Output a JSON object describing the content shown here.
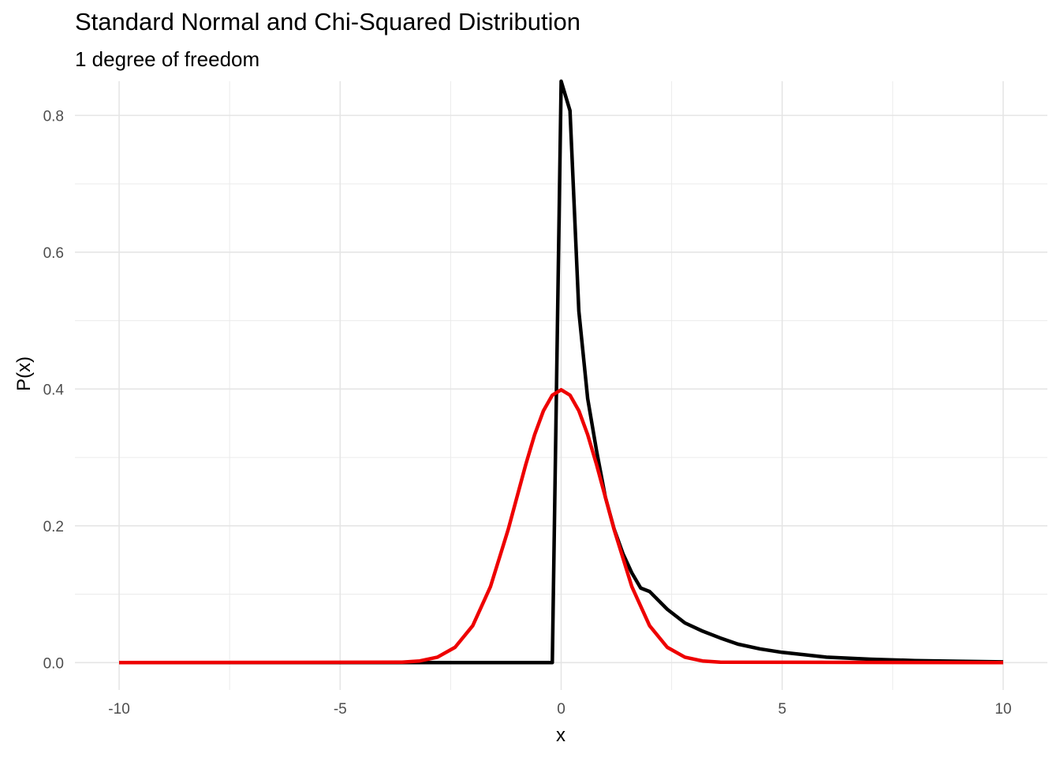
{
  "chart_data": {
    "type": "line",
    "title": "Standard Normal and Chi-Squared Distribution",
    "subtitle": "1 degree of freedom",
    "xlabel": "x",
    "ylabel": "P(x)",
    "xlim": [
      -11,
      11
    ],
    "ylim": [
      -0.04,
      0.85
    ],
    "x_ticks": [
      -10,
      -5,
      0,
      5,
      10
    ],
    "x_tick_labels": [
      "-10",
      "-5",
      "0",
      "5",
      "10"
    ],
    "y_ticks": [
      0.0,
      0.2,
      0.4,
      0.6,
      0.8
    ],
    "y_tick_labels": [
      "0.0",
      "0.2",
      "0.4",
      "0.6",
      "0.8"
    ],
    "x_minor_ticks": [
      -7.5,
      -2.5,
      2.5,
      7.5
    ],
    "y_minor_ticks": [
      0.1,
      0.3,
      0.5,
      0.7
    ],
    "grid": true,
    "legend": "none",
    "series": [
      {
        "color": "#000000",
        "x": [
          -10,
          -0.2,
          0,
          0.2,
          0.4,
          0.6,
          0.8,
          1.0,
          1.2,
          1.4,
          1.6,
          1.8,
          2.0,
          2.4,
          2.8,
          3.2,
          3.6,
          4.0,
          4.5,
          5.0,
          6.0,
          7.0,
          8.0,
          9.0,
          10.0
        ],
        "values": [
          0,
          0,
          0.85,
          0.807,
          0.514,
          0.386,
          0.31,
          0.242,
          0.195,
          0.159,
          0.131,
          0.109,
          0.104,
          0.078,
          0.058,
          0.046,
          0.036,
          0.027,
          0.02,
          0.015,
          0.008,
          0.005,
          0.003,
          0.002,
          0.001
        ]
      },
      {
        "color": "#ee0000",
        "x": [
          -10,
          -3.6,
          -3.2,
          -2.8,
          -2.4,
          -2.0,
          -1.6,
          -1.2,
          -0.8,
          -0.6,
          -0.4,
          -0.2,
          0,
          0.2,
          0.4,
          0.6,
          0.8,
          1.2,
          1.6,
          2.0,
          2.4,
          2.8,
          3.2,
          3.6,
          10
        ],
        "values": [
          0,
          0.0006,
          0.0024,
          0.0079,
          0.0224,
          0.054,
          0.1109,
          0.1942,
          0.2897,
          0.3332,
          0.3683,
          0.391,
          0.3989,
          0.391,
          0.3683,
          0.3332,
          0.2897,
          0.1942,
          0.1109,
          0.054,
          0.0224,
          0.0079,
          0.0024,
          0.0006,
          0
        ]
      }
    ]
  }
}
